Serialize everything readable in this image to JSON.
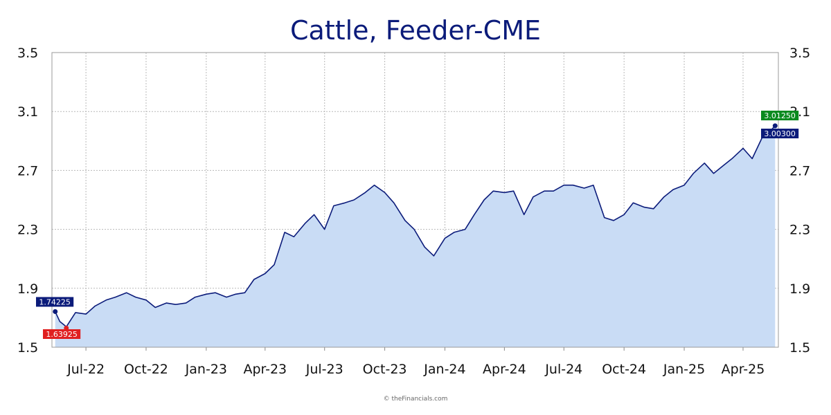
{
  "chart_data": {
    "type": "area",
    "title": "Cattle, Feeder-CME",
    "xlabel": "",
    "ylabel": "",
    "ylim": [
      1.5,
      3.5
    ],
    "y_ticks": [
      "1.5",
      "1.9",
      "2.3",
      "2.7",
      "3.1",
      "3.5"
    ],
    "x_ticks": [
      "Jul-22",
      "Oct-22",
      "Jan-23",
      "Apr-23",
      "Jul-23",
      "Oct-23",
      "Jan-24",
      "Apr-24",
      "Jul-24",
      "Oct-24",
      "Jan-25",
      "Apr-25"
    ],
    "grid": true,
    "series": [
      {
        "x": [
          "2022-05-15",
          "2022-05-22",
          "2022-06-01",
          "2022-06-15",
          "2022-07-01",
          "2022-07-15",
          "2022-08-01",
          "2022-08-15",
          "2022-09-01",
          "2022-09-15",
          "2022-10-01",
          "2022-10-15",
          "2022-11-01",
          "2022-11-15",
          "2022-12-01",
          "2022-12-15",
          "2023-01-01",
          "2023-01-15",
          "2023-02-01",
          "2023-02-15",
          "2023-03-01",
          "2023-03-15",
          "2023-04-01",
          "2023-04-15",
          "2023-05-01",
          "2023-05-15",
          "2023-06-01",
          "2023-06-15",
          "2023-07-01",
          "2023-07-15",
          "2023-08-01",
          "2023-08-15",
          "2023-09-01",
          "2023-09-15",
          "2023-10-01",
          "2023-10-15",
          "2023-11-01",
          "2023-11-15",
          "2023-12-01",
          "2023-12-15",
          "2024-01-01",
          "2024-01-15",
          "2024-02-01",
          "2024-02-15",
          "2024-03-01",
          "2024-03-15",
          "2024-04-01",
          "2024-04-15",
          "2024-05-01",
          "2024-05-15",
          "2024-06-01",
          "2024-06-15",
          "2024-07-01",
          "2024-07-15",
          "2024-08-01",
          "2024-08-15",
          "2024-09-01",
          "2024-09-15",
          "2024-10-01",
          "2024-10-15",
          "2024-11-01",
          "2024-11-15",
          "2024-12-01",
          "2024-12-15",
          "2025-01-01",
          "2025-01-15",
          "2025-02-01",
          "2025-02-15",
          "2025-03-01",
          "2025-03-15",
          "2025-04-01",
          "2025-04-15",
          "2025-05-01",
          "2025-05-15",
          "2025-05-20"
        ],
        "values": [
          1.742,
          1.675,
          1.639,
          1.735,
          1.725,
          1.78,
          1.82,
          1.84,
          1.87,
          1.84,
          1.82,
          1.77,
          1.8,
          1.79,
          1.8,
          1.84,
          1.86,
          1.87,
          1.84,
          1.86,
          1.87,
          1.96,
          2.0,
          2.06,
          2.28,
          2.25,
          2.34,
          2.4,
          2.3,
          2.46,
          2.48,
          2.5,
          2.55,
          2.6,
          2.55,
          2.48,
          2.36,
          2.3,
          2.18,
          2.12,
          2.24,
          2.28,
          2.3,
          2.4,
          2.5,
          2.56,
          2.55,
          2.56,
          2.4,
          2.52,
          2.56,
          2.56,
          2.6,
          2.6,
          2.58,
          2.6,
          2.38,
          2.36,
          2.4,
          2.48,
          2.45,
          2.44,
          2.52,
          2.57,
          2.6,
          2.68,
          2.75,
          2.68,
          2.73,
          2.78,
          2.85,
          2.78,
          2.93,
          2.98,
          3.003
        ]
      }
    ],
    "markers": {
      "start": "1.74225",
      "low": "1.63925",
      "high": "3.01250",
      "last": "3.00300"
    },
    "colors": {
      "line": "#0b1b7a",
      "fill": "#c9dcf5",
      "title": "#0b1b7a",
      "high": "#0a8a1f",
      "low": "#e02020",
      "tag": "#0b1b7a"
    },
    "credit": "© theFinancials.com"
  }
}
